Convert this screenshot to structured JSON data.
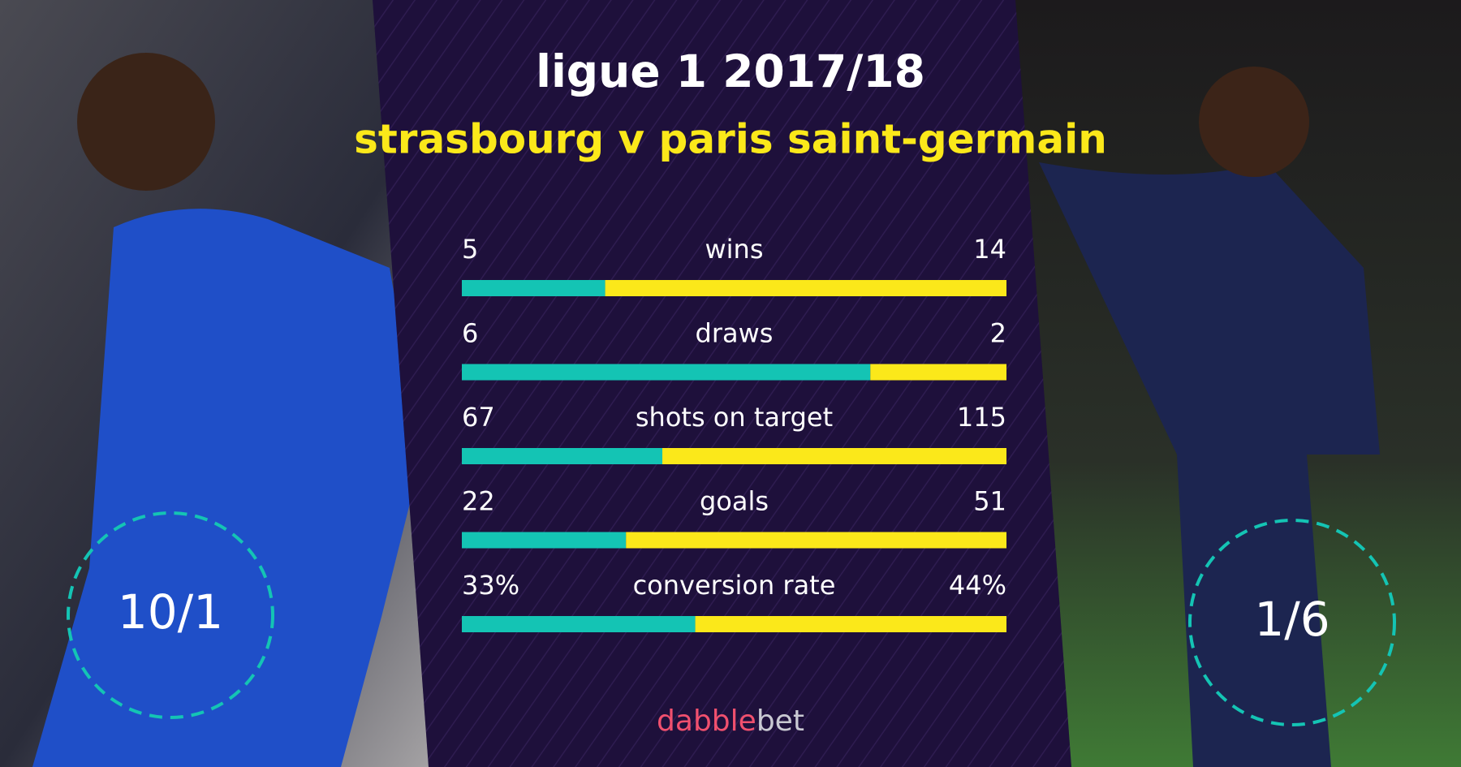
{
  "chart_data": {
    "type": "split-bar",
    "title": "ligue 1 2017/18",
    "subtitle": "strasbourg v paris saint-germain",
    "categories": [
      "wins",
      "draws",
      "shots on target",
      "goals",
      "conversion rate"
    ],
    "series": [
      {
        "color": "#14c4b4",
        "values": [
          5,
          6,
          67,
          22,
          33
        ],
        "value_labels": [
          "5",
          "6",
          "67",
          "22",
          "33%"
        ]
      },
      {
        "color": "#fbe81a",
        "values": [
          14,
          2,
          115,
          51,
          44
        ],
        "value_labels": [
          "14",
          "2",
          "115",
          "51",
          "44%"
        ]
      }
    ],
    "odds": [
      "10/1",
      "1/6"
    ],
    "brand": [
      "dabble",
      "bet"
    ]
  }
}
